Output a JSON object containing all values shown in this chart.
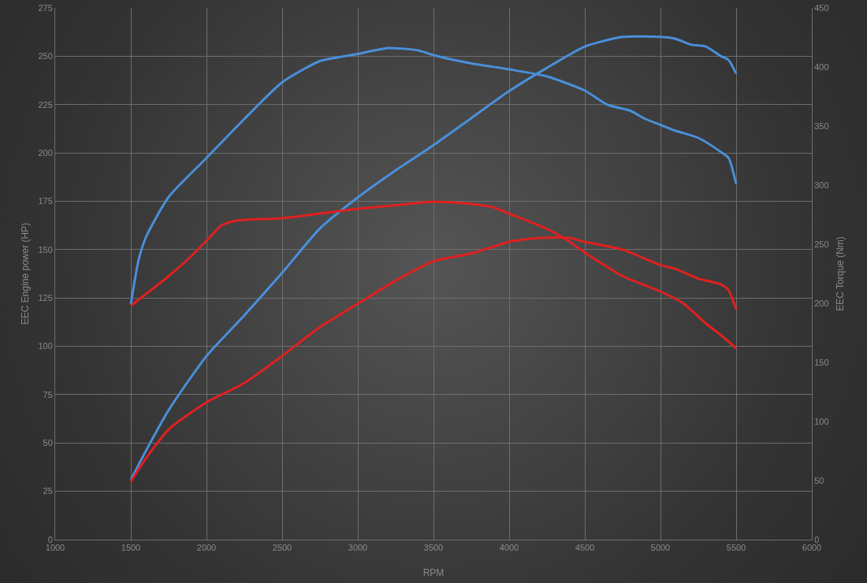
{
  "chart_data": {
    "type": "line",
    "xlabel": "RPM",
    "ylabel": "EEC Engine power (HP)",
    "y2label": "EEC Torque (Nm)",
    "xlim": [
      1000,
      6000
    ],
    "xticks": [
      1000,
      1500,
      2000,
      2500,
      3000,
      3500,
      4000,
      4500,
      5000,
      5500,
      6000
    ],
    "ylim": [
      0,
      275
    ],
    "yticks": [
      0,
      25,
      50,
      75,
      100,
      125,
      150,
      175,
      200,
      225,
      250,
      275
    ],
    "y2lim": [
      0,
      450
    ],
    "y2ticks": [
      0,
      50,
      100,
      150,
      200,
      250,
      300,
      350,
      400,
      450
    ],
    "grid": true,
    "line_style": "solid",
    "series": [
      {
        "color": "#4a8fdb",
        "x": [
          1500,
          1600,
          1750,
          2000,
          2250,
          2500,
          2750,
          3000,
          3250,
          3500,
          3750,
          4000,
          4250,
          4500,
          4750,
          5000,
          5100,
          5200,
          5300,
          5400,
          5450,
          5500
        ],
        "values": [
          31,
          46,
          67,
          95,
          116,
          138,
          161,
          177,
          191,
          204,
          218,
          232,
          244,
          255,
          260,
          260,
          259,
          256,
          255,
          250,
          248,
          241
        ]
      },
      {
        "color": "#e02020",
        "x": [
          1500,
          1600,
          1750,
          2000,
          2250,
          2500,
          2750,
          3000,
          3250,
          3500,
          3750,
          4000,
          4200,
          4400,
          4500,
          4750,
          5000,
          5100,
          5250,
          5400,
          5450,
          5500
        ],
        "values": [
          30,
          42,
          57,
          71,
          81,
          95,
          110,
          122,
          134,
          144,
          148,
          154,
          156,
          156,
          154,
          150,
          142,
          140,
          135,
          132,
          129,
          119
        ]
      },
      {
        "color": "#4a8fdb",
        "axis": "y2",
        "x": [
          1500,
          1550,
          1600,
          1750,
          2000,
          2250,
          2500,
          2750,
          3000,
          3200,
          3400,
          3500,
          3750,
          4000,
          4250,
          4500,
          4650,
          4800,
          4900,
          5000,
          5100,
          5250,
          5400,
          5450,
          5500
        ],
        "values": [
          199,
          236,
          256,
          290,
          323,
          356,
          387,
          405,
          411,
          416,
          414,
          410,
          403,
          398,
          392,
          380,
          368,
          363,
          356,
          351,
          346,
          340,
          328,
          323,
          301
        ]
      },
      {
        "color": "#e02020",
        "axis": "y2",
        "x": [
          1500,
          1750,
          1900,
          2000,
          2100,
          2200,
          2500,
          2750,
          3000,
          3250,
          3500,
          3750,
          3900,
          4000,
          4250,
          4400,
          4500,
          4750,
          5000,
          5150,
          5300,
          5400,
          5500
        ],
        "values": [
          198,
          223,
          240,
          253,
          266,
          270,
          272,
          276,
          280,
          283,
          286,
          284,
          281,
          276,
          263,
          252,
          243,
          223,
          210,
          200,
          183,
          173,
          162
        ]
      }
    ]
  }
}
